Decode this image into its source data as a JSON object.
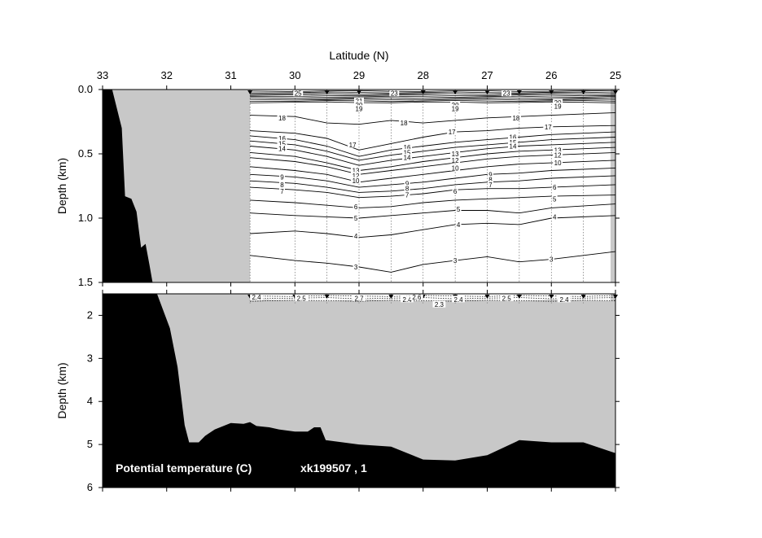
{
  "chart_data": {
    "type": "contour",
    "x_axis": {
      "label": "Latitude (N)",
      "ticks": [
        33,
        32,
        31,
        30,
        29,
        28,
        27,
        26,
        25
      ],
      "range": [
        33,
        25
      ]
    },
    "panels": [
      {
        "id": "upper",
        "ylabel": "Depth (km)",
        "y_ticks": [
          "0.0",
          "0.5",
          "1.0",
          "1.5"
        ],
        "y_range": [
          0,
          1.5
        ]
      },
      {
        "id": "lower",
        "ylabel": "Depth (km)",
        "y_ticks": [
          "2",
          "3",
          "4",
          "5",
          "6"
        ],
        "y_range": [
          1.5,
          6
        ]
      }
    ],
    "stations_lat": [
      30.7,
      30.0,
      29.5,
      29.0,
      28.5,
      28.0,
      27.5,
      27.0,
      26.5,
      26.0,
      25.5,
      25.0
    ],
    "upper_contours": [
      {
        "value": 18,
        "points": [
          [
            30.7,
            0.2
          ],
          [
            30.0,
            0.21
          ],
          [
            29.5,
            0.26
          ],
          [
            29.0,
            0.27
          ],
          [
            28.5,
            0.24
          ],
          [
            28.0,
            0.26
          ],
          [
            27.5,
            0.24
          ],
          [
            27.0,
            0.22
          ],
          [
            26.5,
            0.21
          ],
          [
            26.0,
            0.2
          ],
          [
            25.0,
            0.18
          ]
        ]
      },
      {
        "value": 17,
        "points": [
          [
            30.7,
            0.32
          ],
          [
            30.0,
            0.34
          ],
          [
            29.5,
            0.38
          ],
          [
            29.0,
            0.47
          ],
          [
            28.5,
            0.42
          ],
          [
            28.0,
            0.37
          ],
          [
            27.5,
            0.33
          ],
          [
            27.0,
            0.32
          ],
          [
            26.5,
            0.3
          ],
          [
            26.0,
            0.29
          ],
          [
            25.0,
            0.28
          ]
        ]
      },
      {
        "value": 16,
        "points": [
          [
            30.7,
            0.36
          ],
          [
            30.0,
            0.39
          ],
          [
            29.5,
            0.44
          ],
          [
            29.0,
            0.52
          ],
          [
            28.5,
            0.47
          ],
          [
            28.0,
            0.44
          ],
          [
            27.5,
            0.41
          ],
          [
            27.0,
            0.39
          ],
          [
            26.5,
            0.37
          ],
          [
            26.0,
            0.35
          ],
          [
            25.0,
            0.33
          ]
        ]
      },
      {
        "value": 15,
        "points": [
          [
            30.7,
            0.4
          ],
          [
            30.0,
            0.43
          ],
          [
            29.5,
            0.48
          ],
          [
            29.0,
            0.55
          ],
          [
            28.5,
            0.51
          ],
          [
            28.0,
            0.48
          ],
          [
            27.5,
            0.45
          ],
          [
            27.0,
            0.43
          ],
          [
            26.5,
            0.41
          ],
          [
            26.0,
            0.39
          ],
          [
            25.0,
            0.37
          ]
        ]
      },
      {
        "value": 14,
        "points": [
          [
            30.7,
            0.44
          ],
          [
            30.0,
            0.47
          ],
          [
            29.5,
            0.52
          ],
          [
            29.0,
            0.59
          ],
          [
            28.5,
            0.55
          ],
          [
            28.0,
            0.52
          ],
          [
            27.5,
            0.49
          ],
          [
            27.0,
            0.46
          ],
          [
            26.5,
            0.44
          ],
          [
            26.0,
            0.43
          ],
          [
            25.0,
            0.41
          ]
        ]
      },
      {
        "value": 13,
        "points": [
          [
            30.7,
            0.49
          ],
          [
            30.0,
            0.52
          ],
          [
            29.5,
            0.57
          ],
          [
            29.0,
            0.63
          ],
          [
            28.5,
            0.6
          ],
          [
            28.0,
            0.56
          ],
          [
            27.5,
            0.53
          ],
          [
            27.0,
            0.5
          ],
          [
            26.5,
            0.48
          ],
          [
            26.0,
            0.47
          ],
          [
            25.0,
            0.45
          ]
        ]
      },
      {
        "value": 12,
        "points": [
          [
            30.7,
            0.53
          ],
          [
            30.0,
            0.56
          ],
          [
            29.5,
            0.6
          ],
          [
            29.0,
            0.66
          ],
          [
            28.5,
            0.63
          ],
          [
            28.0,
            0.6
          ],
          [
            27.5,
            0.57
          ],
          [
            27.0,
            0.54
          ],
          [
            26.5,
            0.52
          ],
          [
            26.0,
            0.51
          ],
          [
            25.0,
            0.49
          ]
        ]
      },
      {
        "value": 10,
        "points": [
          [
            30.7,
            0.6
          ],
          [
            30.0,
            0.63
          ],
          [
            29.5,
            0.66
          ],
          [
            29.0,
            0.72
          ],
          [
            28.5,
            0.69
          ],
          [
            28.0,
            0.66
          ],
          [
            27.5,
            0.63
          ],
          [
            27.0,
            0.6
          ],
          [
            26.5,
            0.58
          ],
          [
            26.0,
            0.57
          ],
          [
            25.0,
            0.55
          ]
        ]
      },
      {
        "value": 9,
        "points": [
          [
            30.7,
            0.66
          ],
          [
            30.0,
            0.68
          ],
          [
            29.5,
            0.71
          ],
          [
            29.0,
            0.76
          ],
          [
            28.5,
            0.74
          ],
          [
            28.0,
            0.72
          ],
          [
            27.5,
            0.69
          ],
          [
            27.0,
            0.66
          ],
          [
            26.5,
            0.65
          ],
          [
            26.0,
            0.63
          ],
          [
            25.0,
            0.61
          ]
        ]
      },
      {
        "value": 8,
        "points": [
          [
            30.7,
            0.71
          ],
          [
            30.0,
            0.73
          ],
          [
            29.5,
            0.76
          ],
          [
            29.0,
            0.8
          ],
          [
            28.5,
            0.79
          ],
          [
            28.0,
            0.77
          ],
          [
            27.5,
            0.74
          ],
          [
            27.0,
            0.72
          ],
          [
            26.5,
            0.71
          ],
          [
            26.0,
            0.69
          ],
          [
            25.0,
            0.67
          ]
        ]
      },
      {
        "value": 7,
        "points": [
          [
            30.7,
            0.76
          ],
          [
            30.0,
            0.78
          ],
          [
            29.5,
            0.8
          ],
          [
            29.0,
            0.84
          ],
          [
            28.5,
            0.83
          ],
          [
            28.0,
            0.81
          ],
          [
            27.5,
            0.78
          ],
          [
            27.0,
            0.77
          ],
          [
            26.5,
            0.77
          ],
          [
            26.0,
            0.76
          ],
          [
            25.0,
            0.74
          ]
        ]
      },
      {
        "value": 6,
        "points": [
          [
            30.7,
            0.86
          ],
          [
            30.0,
            0.88
          ],
          [
            29.5,
            0.9
          ],
          [
            29.0,
            0.92
          ],
          [
            28.5,
            0.91
          ],
          [
            28.0,
            0.88
          ],
          [
            27.5,
            0.86
          ],
          [
            27.0,
            0.85
          ],
          [
            26.5,
            0.84
          ],
          [
            26.0,
            0.83
          ],
          [
            25.0,
            0.82
          ]
        ]
      },
      {
        "value": 5,
        "points": [
          [
            30.7,
            0.96
          ],
          [
            30.0,
            0.98
          ],
          [
            29.5,
            0.99
          ],
          [
            29.0,
            1.0
          ],
          [
            28.5,
            0.98
          ],
          [
            28.0,
            0.96
          ],
          [
            27.5,
            0.94
          ],
          [
            27.0,
            0.94
          ],
          [
            26.5,
            0.96
          ],
          [
            26.0,
            0.92
          ],
          [
            25.0,
            0.89
          ]
        ]
      },
      {
        "value": 4,
        "points": [
          [
            30.7,
            1.12
          ],
          [
            30.0,
            1.1
          ],
          [
            29.5,
            1.12
          ],
          [
            29.0,
            1.15
          ],
          [
            28.5,
            1.13
          ],
          [
            28.0,
            1.09
          ],
          [
            27.5,
            1.05
          ],
          [
            27.0,
            1.04
          ],
          [
            26.5,
            1.05
          ],
          [
            26.0,
            1.0
          ],
          [
            25.0,
            0.98
          ]
        ]
      },
      {
        "value": 3,
        "points": [
          [
            30.7,
            1.29
          ],
          [
            30.0,
            1.33
          ],
          [
            29.5,
            1.35
          ],
          [
            29.0,
            1.38
          ],
          [
            28.5,
            1.42
          ],
          [
            28.0,
            1.36
          ],
          [
            27.5,
            1.33
          ],
          [
            27.0,
            1.3
          ],
          [
            26.5,
            1.34
          ],
          [
            26.0,
            1.32
          ],
          [
            25.0,
            1.26
          ]
        ]
      }
    ],
    "upper_contour_labels": [
      {
        "text": "25",
        "lat": 29.95,
        "depth": 0.03
      },
      {
        "text": "23",
        "lat": 28.45,
        "depth": 0.03
      },
      {
        "text": "23",
        "lat": 26.7,
        "depth": 0.03
      },
      {
        "text": "21",
        "lat": 29.0,
        "depth": 0.09
      },
      {
        "text": "20",
        "lat": 29.0,
        "depth": 0.12
      },
      {
        "text": "19",
        "lat": 29.0,
        "depth": 0.15
      },
      {
        "text": "20",
        "lat": 27.5,
        "depth": 0.12
      },
      {
        "text": "19",
        "lat": 27.5,
        "depth": 0.15
      },
      {
        "text": "20",
        "lat": 25.9,
        "depth": 0.1
      },
      {
        "text": "19",
        "lat": 25.9,
        "depth": 0.13
      },
      {
        "text": "18",
        "lat": 30.2,
        "depth": 0.22
      },
      {
        "text": "18",
        "lat": 28.3,
        "depth": 0.26
      },
      {
        "text": "18",
        "lat": 26.55,
        "depth": 0.22
      },
      {
        "text": "17",
        "lat": 29.1,
        "depth": 0.43
      },
      {
        "text": "17",
        "lat": 27.55,
        "depth": 0.33
      },
      {
        "text": "17",
        "lat": 26.05,
        "depth": 0.29
      },
      {
        "text": "16",
        "lat": 30.2,
        "depth": 0.38
      },
      {
        "text": "15",
        "lat": 30.2,
        "depth": 0.42
      },
      {
        "text": "14",
        "lat": 30.2,
        "depth": 0.46
      },
      {
        "text": "16",
        "lat": 28.25,
        "depth": 0.45
      },
      {
        "text": "15",
        "lat": 28.25,
        "depth": 0.49
      },
      {
        "text": "14",
        "lat": 28.25,
        "depth": 0.53
      },
      {
        "text": "13",
        "lat": 27.5,
        "depth": 0.5
      },
      {
        "text": "12",
        "lat": 27.5,
        "depth": 0.55
      },
      {
        "text": "10",
        "lat": 27.5,
        "depth": 0.61
      },
      {
        "text": "16",
        "lat": 26.6,
        "depth": 0.37
      },
      {
        "text": "15",
        "lat": 26.6,
        "depth": 0.41
      },
      {
        "text": "14",
        "lat": 26.6,
        "depth": 0.44
      },
      {
        "text": "13",
        "lat": 25.9,
        "depth": 0.47
      },
      {
        "text": "12",
        "lat": 25.9,
        "depth": 0.51
      },
      {
        "text": "10",
        "lat": 25.9,
        "depth": 0.57
      },
      {
        "text": "13",
        "lat": 29.05,
        "depth": 0.63
      },
      {
        "text": "12",
        "lat": 29.05,
        "depth": 0.67
      },
      {
        "text": "10",
        "lat": 29.05,
        "depth": 0.71
      },
      {
        "text": "9",
        "lat": 30.2,
        "depth": 0.68
      },
      {
        "text": "8",
        "lat": 30.2,
        "depth": 0.74
      },
      {
        "text": "7",
        "lat": 30.2,
        "depth": 0.79
      },
      {
        "text": "9",
        "lat": 28.25,
        "depth": 0.73
      },
      {
        "text": "8",
        "lat": 28.25,
        "depth": 0.77
      },
      {
        "text": "7",
        "lat": 28.25,
        "depth": 0.82
      },
      {
        "text": "9",
        "lat": 26.95,
        "depth": 0.66
      },
      {
        "text": "8",
        "lat": 26.95,
        "depth": 0.7
      },
      {
        "text": "7",
        "lat": 26.95,
        "depth": 0.74
      },
      {
        "text": "6",
        "lat": 29.05,
        "depth": 0.91
      },
      {
        "text": "6",
        "lat": 27.5,
        "depth": 0.79
      },
      {
        "text": "6",
        "lat": 25.95,
        "depth": 0.76
      },
      {
        "text": "5",
        "lat": 29.05,
        "depth": 1.0
      },
      {
        "text": "5",
        "lat": 27.45,
        "depth": 0.93
      },
      {
        "text": "5",
        "lat": 25.95,
        "depth": 0.85
      },
      {
        "text": "4",
        "lat": 29.05,
        "depth": 1.14
      },
      {
        "text": "4",
        "lat": 27.45,
        "depth": 1.05
      },
      {
        "text": "4",
        "lat": 25.95,
        "depth": 0.99
      },
      {
        "text": "3",
        "lat": 29.05,
        "depth": 1.38
      },
      {
        "text": "3",
        "lat": 27.5,
        "depth": 1.33
      },
      {
        "text": "3",
        "lat": 26.0,
        "depth": 1.32
      }
    ],
    "lower_contour_labels": [
      {
        "text": "2.4",
        "lat": 30.6,
        "depth": 1.58
      },
      {
        "text": "2.5",
        "lat": 29.9,
        "depth": 1.6
      },
      {
        "text": "2.7",
        "lat": 29.0,
        "depth": 1.6
      },
      {
        "text": "2.4",
        "lat": 28.25,
        "depth": 1.63
      },
      {
        "text": "2.6",
        "lat": 28.1,
        "depth": 1.58
      },
      {
        "text": "2.3",
        "lat": 27.75,
        "depth": 1.75
      },
      {
        "text": "2.4",
        "lat": 27.45,
        "depth": 1.63
      },
      {
        "text": "2.5",
        "lat": 26.7,
        "depth": 1.6
      },
      {
        "text": "2.4",
        "lat": 25.8,
        "depth": 1.63
      }
    ],
    "bathymetry_upper": [
      [
        33.0,
        0.0
      ],
      [
        32.85,
        0.0
      ],
      [
        32.7,
        0.3
      ],
      [
        32.65,
        0.83
      ],
      [
        32.55,
        0.85
      ],
      [
        32.47,
        0.95
      ],
      [
        32.4,
        1.23
      ],
      [
        32.33,
        1.2
      ],
      [
        32.27,
        1.36
      ],
      [
        32.22,
        1.5
      ]
    ],
    "bathymetry_lower": [
      [
        32.15,
        1.5
      ],
      [
        31.95,
        2.3
      ],
      [
        31.83,
        3.2
      ],
      [
        31.72,
        4.55
      ],
      [
        31.65,
        4.95
      ],
      [
        31.5,
        4.95
      ],
      [
        31.4,
        4.8
      ],
      [
        31.25,
        4.65
      ],
      [
        31.0,
        4.5
      ],
      [
        30.8,
        4.52
      ],
      [
        30.7,
        4.48
      ],
      [
        30.6,
        4.57
      ],
      [
        30.4,
        4.6
      ],
      [
        30.25,
        4.65
      ],
      [
        30.0,
        4.7
      ],
      [
        29.8,
        4.7
      ],
      [
        29.7,
        4.6
      ],
      [
        29.6,
        4.6
      ],
      [
        29.52,
        4.9
      ],
      [
        29.0,
        5.0
      ],
      [
        28.5,
        5.05
      ],
      [
        28.0,
        5.35
      ],
      [
        27.5,
        5.37
      ],
      [
        27.0,
        5.25
      ],
      [
        26.5,
        4.9
      ],
      [
        26.0,
        4.95
      ],
      [
        25.5,
        4.95
      ],
      [
        25.0,
        5.2
      ]
    ],
    "no_data_region": {
      "lat_from": 33.0,
      "lat_to": 30.7
    },
    "colors": {
      "land": "#000000",
      "no_data": "#c8c8c8",
      "data_area": "#ffffff",
      "contour": "#000000"
    },
    "annotation": {
      "label": "Potential temperature (C)",
      "cruise": "xk199507 , 1"
    }
  }
}
